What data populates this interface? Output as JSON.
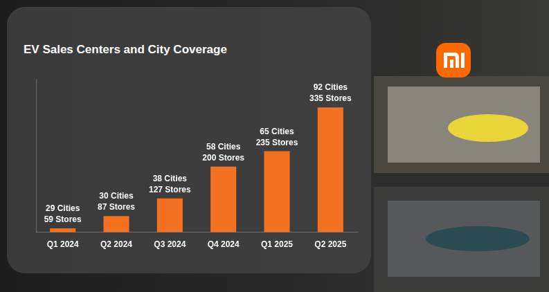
{
  "chart_data": {
    "type": "bar",
    "title": "EV Sales Centers and City Coverage",
    "categories": [
      "Q1 2024",
      "Q2 2024",
      "Q3 2024",
      "Q4 2024",
      "Q1 2025",
      "Q2 2025"
    ],
    "values": [
      59,
      87,
      127,
      200,
      235,
      335
    ],
    "value_labels": [
      "59 Stores",
      "87 Stores",
      "127 Stores",
      "200 Stores",
      "235 Stores",
      "335 Stores"
    ],
    "cities": [
      "29 Cities",
      "30 Cities",
      "38 Cities",
      "58 Cities",
      "65 Cities",
      "92 Cities"
    ],
    "color": "#f37021",
    "ylim": [
      50,
      400
    ],
    "grid": false,
    "data_labels": true,
    "tick_labels": "x"
  }
}
